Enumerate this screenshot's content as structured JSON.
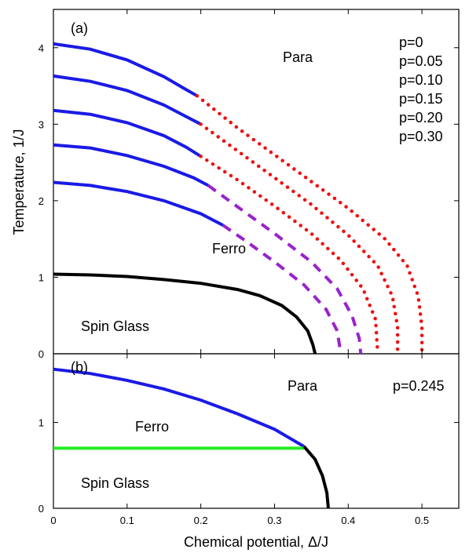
{
  "colors": {
    "blue": "#1a1ae6",
    "red": "#ee1111",
    "purple": "#9a22cc",
    "black": "#000000",
    "green": "#22ee22"
  },
  "axes": {
    "xlabel": "Chemical potential, Δ/J",
    "ylabel": "Temperature, 1/J"
  },
  "chart_data": [
    {
      "type": "line",
      "panel_label": "(a)",
      "xlim": [
        0,
        0.55
      ],
      "ylim": [
        0,
        4.5
      ],
      "x_ticks": [
        "0",
        "0.1",
        "0.2",
        "0.3",
        "0.4",
        "0.5"
      ],
      "y_ticks": [
        "0",
        "1",
        "2",
        "3",
        "4"
      ],
      "grid": false,
      "annotations": [
        "Para",
        "Ferro",
        "Spin Glass"
      ],
      "legend_text": [
        "p=0",
        "p=0.05",
        "p=0.10",
        "p=0.15",
        "p=0.20",
        "p=0.30"
      ],
      "series": [
        {
          "style": "solid",
          "color": "blue",
          "points": [
            [
              0,
              4.05
            ],
            [
              0.05,
              3.98
            ],
            [
              0.1,
              3.84
            ],
            [
              0.15,
              3.62
            ],
            [
              0.175,
              3.48
            ],
            [
              0.195,
              3.37
            ]
          ]
        },
        {
          "style": "dotted",
          "color": "red",
          "points": [
            [
              0.195,
              3.37
            ],
            [
              0.25,
              2.95
            ],
            [
              0.3,
              2.6
            ],
            [
              0.35,
              2.25
            ],
            [
              0.4,
              1.9
            ],
            [
              0.45,
              1.5
            ],
            [
              0.48,
              1.15
            ],
            [
              0.495,
              0.75
            ],
            [
              0.5,
              0.35
            ],
            [
              0.5,
              0.0
            ]
          ]
        },
        {
          "style": "solid",
          "color": "blue",
          "points": [
            [
              0,
              3.63
            ],
            [
              0.05,
              3.56
            ],
            [
              0.1,
              3.44
            ],
            [
              0.15,
              3.25
            ],
            [
              0.18,
              3.1
            ],
            [
              0.2,
              3.0
            ]
          ]
        },
        {
          "style": "dotted",
          "color": "red",
          "points": [
            [
              0.2,
              3.0
            ],
            [
              0.25,
              2.65
            ],
            [
              0.3,
              2.3
            ],
            [
              0.35,
              1.95
            ],
            [
              0.4,
              1.55
            ],
            [
              0.44,
              1.15
            ],
            [
              0.46,
              0.75
            ],
            [
              0.467,
              0.35
            ],
            [
              0.467,
              0.0
            ]
          ]
        },
        {
          "style": "solid",
          "color": "blue",
          "points": [
            [
              0,
              3.18
            ],
            [
              0.05,
              3.13
            ],
            [
              0.1,
              3.02
            ],
            [
              0.15,
              2.85
            ],
            [
              0.18,
              2.7
            ],
            [
              0.2,
              2.58
            ]
          ]
        },
        {
          "style": "dotted",
          "color": "red",
          "points": [
            [
              0.2,
              2.58
            ],
            [
              0.25,
              2.27
            ],
            [
              0.3,
              1.93
            ],
            [
              0.35,
              1.57
            ],
            [
              0.39,
              1.22
            ],
            [
              0.42,
              0.85
            ],
            [
              0.437,
              0.45
            ],
            [
              0.44,
              0.0
            ]
          ]
        },
        {
          "style": "solid",
          "color": "blue",
          "points": [
            [
              0,
              2.73
            ],
            [
              0.05,
              2.69
            ],
            [
              0.1,
              2.59
            ],
            [
              0.15,
              2.45
            ],
            [
              0.19,
              2.3
            ],
            [
              0.21,
              2.2
            ]
          ]
        },
        {
          "style": "dashed",
          "color": "purple",
          "points": [
            [
              0.21,
              2.2
            ],
            [
              0.25,
              1.92
            ],
            [
              0.3,
              1.57
            ],
            [
              0.35,
              1.2
            ],
            [
              0.385,
              0.85
            ],
            [
              0.405,
              0.5
            ],
            [
              0.415,
              0.2
            ],
            [
              0.417,
              0.0
            ]
          ]
        },
        {
          "style": "solid",
          "color": "blue",
          "points": [
            [
              0,
              2.24
            ],
            [
              0.05,
              2.2
            ],
            [
              0.1,
              2.12
            ],
            [
              0.15,
              2.0
            ],
            [
              0.2,
              1.83
            ],
            [
              0.23,
              1.68
            ]
          ]
        },
        {
          "style": "dashed",
          "color": "purple",
          "points": [
            [
              0.23,
              1.68
            ],
            [
              0.26,
              1.48
            ],
            [
              0.3,
              1.2
            ],
            [
              0.34,
              0.9
            ],
            [
              0.37,
              0.58
            ],
            [
              0.385,
              0.3
            ],
            [
              0.39,
              0.0
            ]
          ]
        },
        {
          "style": "solid",
          "color": "black",
          "points": [
            [
              0,
              1.04
            ],
            [
              0.05,
              1.03
            ],
            [
              0.1,
              1.01
            ],
            [
              0.15,
              0.97
            ],
            [
              0.2,
              0.92
            ],
            [
              0.25,
              0.84
            ],
            [
              0.28,
              0.76
            ],
            [
              0.31,
              0.63
            ],
            [
              0.33,
              0.48
            ],
            [
              0.345,
              0.3
            ],
            [
              0.352,
              0.12
            ],
            [
              0.355,
              0.0
            ]
          ]
        }
      ]
    },
    {
      "type": "line",
      "panel_label": "(b)",
      "xlim": [
        0,
        0.55
      ],
      "ylim": [
        0,
        1.8
      ],
      "x_ticks": [
        "0",
        "0.1",
        "0.2",
        "0.3",
        "0.4",
        "0.5"
      ],
      "y_ticks": [
        "0",
        "1"
      ],
      "grid": false,
      "annotations": [
        "Para",
        "Ferro",
        "Spin Glass",
        "p=0.245"
      ],
      "series": [
        {
          "style": "solid",
          "color": "blue",
          "points": [
            [
              0,
              1.62
            ],
            [
              0.05,
              1.57
            ],
            [
              0.1,
              1.49
            ],
            [
              0.15,
              1.39
            ],
            [
              0.2,
              1.26
            ],
            [
              0.25,
              1.1
            ],
            [
              0.3,
              0.92
            ],
            [
              0.34,
              0.72
            ]
          ]
        },
        {
          "style": "solid",
          "color": "green",
          "points": [
            [
              0,
              0.7
            ],
            [
              0.34,
              0.7
            ]
          ]
        },
        {
          "style": "solid",
          "color": "black",
          "points": [
            [
              0.34,
              0.72
            ],
            [
              0.355,
              0.57
            ],
            [
              0.365,
              0.38
            ],
            [
              0.371,
              0.18
            ],
            [
              0.373,
              0.0
            ]
          ]
        }
      ]
    }
  ]
}
